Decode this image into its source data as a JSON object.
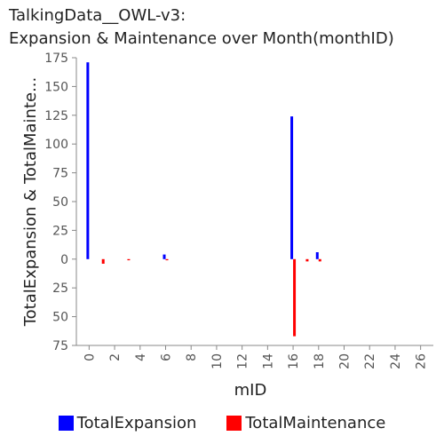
{
  "title_line1": "TalkingData__OWL-v3:",
  "title_line2": "Expansion & Maintenance over Month(monthID)",
  "chart_data": {
    "type": "bar",
    "xlabel": "mID",
    "ylabel": "TotalExpansion & TotalMainte...",
    "x": [
      0,
      1,
      3,
      6,
      16,
      17,
      18
    ],
    "x_ticks": [
      0,
      2,
      4,
      6,
      8,
      10,
      12,
      14,
      16,
      18,
      20,
      22,
      24,
      26
    ],
    "xlim": [
      -1,
      27
    ],
    "y_ticks_up": [
      0,
      25,
      50,
      75,
      100,
      125,
      150,
      175
    ],
    "y_ticks_down": [
      25,
      50,
      75
    ],
    "ylim": [
      -75,
      175
    ],
    "series": [
      {
        "name": "TotalExpansion",
        "color": "#0000ff",
        "values": [
          171,
          0,
          0,
          4,
          124,
          0,
          6
        ]
      },
      {
        "name": "TotalMaintenance",
        "color": "#ff0000",
        "values": [
          0,
          -4,
          -1,
          -1,
          -67,
          -2,
          -2
        ]
      }
    ],
    "grid": false,
    "legend": "bottom"
  }
}
